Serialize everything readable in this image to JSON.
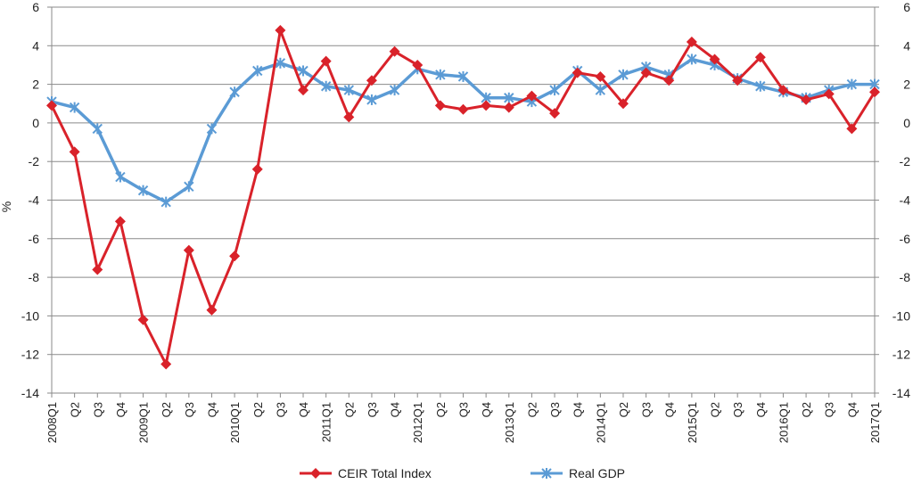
{
  "chart_data": {
    "type": "line",
    "ylabel": "%",
    "ylim": [
      -14,
      6
    ],
    "yticks": [
      6,
      4,
      2,
      0,
      -2,
      -4,
      -6,
      -8,
      -10,
      -12,
      -14
    ],
    "secondary_y_axis": true,
    "grid": "horizontal",
    "legend_position": "bottom",
    "categories": [
      "2008Q1",
      "Q2",
      "Q3",
      "Q4",
      "2009Q1",
      "Q2",
      "Q3",
      "Q4",
      "2010Q1",
      "Q2",
      "Q3",
      "Q4",
      "2011Q1",
      "Q2",
      "Q3",
      "Q4",
      "2012Q1",
      "Q2",
      "Q3",
      "Q4",
      "2013Q1",
      "Q2",
      "Q3",
      "Q4",
      "2014Q1",
      "Q2",
      "Q3",
      "Q4",
      "2015Q1",
      "Q2",
      "Q3",
      "Q4",
      "2016Q1",
      "Q2",
      "Q3",
      "Q4",
      "2017Q1"
    ],
    "series": [
      {
        "name": "CEIR Total Index",
        "color": "#d9222a",
        "marker": "diamond",
        "values": [
          0.9,
          -1.5,
          -7.6,
          -5.1,
          -10.2,
          -12.5,
          -6.6,
          -9.7,
          -6.9,
          -2.4,
          4.8,
          1.7,
          3.2,
          0.3,
          2.2,
          3.7,
          3.0,
          0.9,
          0.7,
          0.9,
          0.8,
          1.4,
          0.5,
          2.6,
          2.4,
          1.0,
          2.6,
          2.2,
          4.2,
          3.3,
          2.2,
          3.4,
          1.7,
          1.2,
          1.5,
          -0.3,
          1.6
        ]
      },
      {
        "name": "Real GDP",
        "color": "#5b9bd5",
        "marker": "asterisk",
        "values": [
          1.1,
          0.8,
          -0.3,
          -2.8,
          -3.5,
          -4.1,
          -3.3,
          -0.3,
          1.6,
          2.7,
          3.1,
          2.7,
          1.9,
          1.7,
          1.2,
          1.7,
          2.8,
          2.5,
          2.4,
          1.3,
          1.3,
          1.1,
          1.7,
          2.7,
          1.7,
          2.5,
          2.9,
          2.5,
          3.3,
          3.0,
          2.3,
          1.9,
          1.6,
          1.3,
          1.7,
          2.0,
          2.0
        ]
      }
    ]
  }
}
